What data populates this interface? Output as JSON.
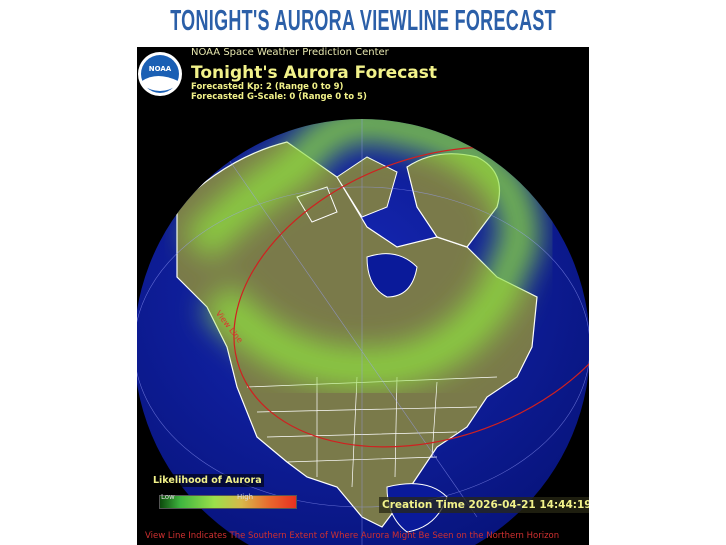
{
  "header": {
    "title": "TONIGHT'S AURORA VIEWLINE FORECAST"
  },
  "forecast": {
    "organization": "NOAA Space Weather Prediction Center",
    "logo_text": "NOAA",
    "title": "Tonight's Aurora Forecast",
    "kp": "Forecasted Kp: 2 (Range 0 to 9)",
    "g_scale": "Forecasted G-Scale: 0 (Range 0 to 5)",
    "view_line_label": "View Line",
    "legend": {
      "title": "Likelihood of Aurora",
      "low": "Low",
      "high": "High"
    },
    "creation_time": "Creation Time 2026-04-21 14:44:19",
    "footnote": "View Line Indicates The Southern Extent of Where Aurora Might Be Seen on the Northern Horizon"
  },
  "colors": {
    "title": "#2b5fa8",
    "ocean": "#0a1a9a",
    "land": "#7a7a4a",
    "aurora": "#8fe040",
    "view_line": "#d02020",
    "text": "#f2f28a"
  }
}
